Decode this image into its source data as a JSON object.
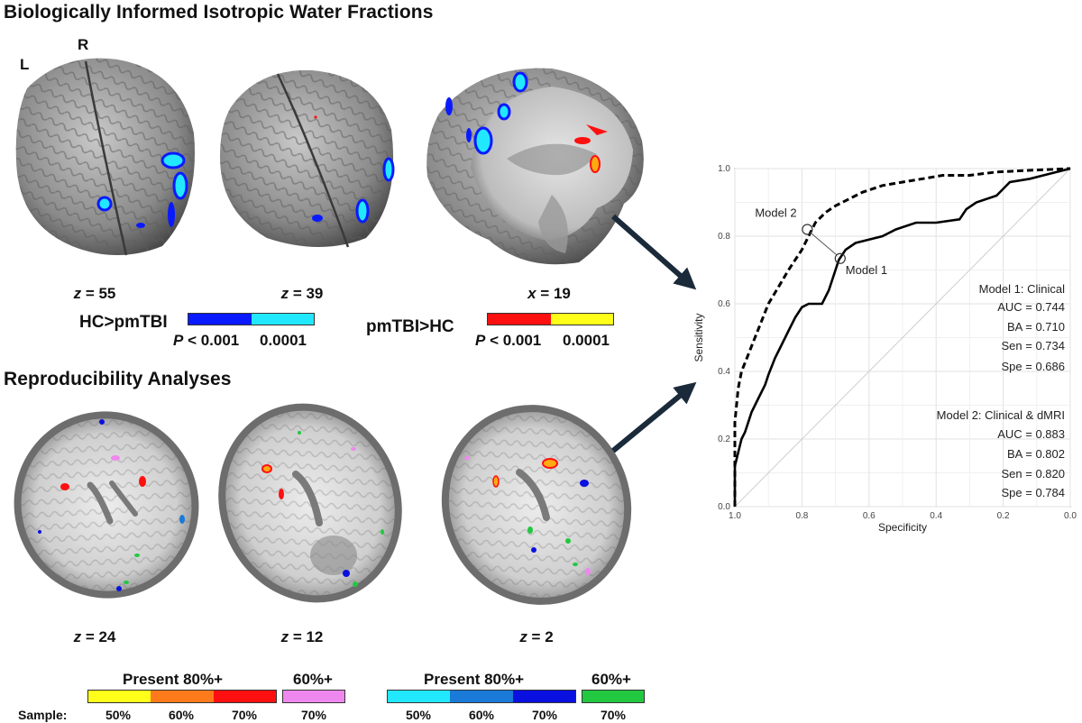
{
  "section1": {
    "title": "Biologically Informed Isotropic Water Fractions",
    "orient_left": "L",
    "orient_right": "R",
    "slices": [
      {
        "axis": "z",
        "value": "55"
      },
      {
        "axis": "z",
        "value": "39"
      },
      {
        "axis": "x",
        "value": "19"
      }
    ],
    "legend_left": {
      "label": "HC>pmTBI",
      "p_prefix": "P",
      "p_low": " < 0.001",
      "p_high": "0.0001",
      "colors": [
        "#0a1aff",
        "#22e8ff"
      ]
    },
    "legend_right": {
      "label": "pmTBI>HC",
      "p_prefix": "P",
      "p_low": " < 0.001",
      "p_high": "0.0001",
      "colors": [
        "#ff1010",
        "#ffff1a"
      ]
    }
  },
  "section2": {
    "title": "Reproducibility Analyses",
    "slices": [
      {
        "axis": "z",
        "value": "24"
      },
      {
        "axis": "z",
        "value": "12"
      },
      {
        "axis": "z",
        "value": "2"
      }
    ],
    "sample_label": "Sample:",
    "legend_warm": {
      "present_label": "Present 80%+",
      "sixty_label": "60%+",
      "segments": [
        {
          "color": "#ffff1a",
          "pct": "50%"
        },
        {
          "color": "#ff7a1a",
          "pct": "60%"
        },
        {
          "color": "#ff1010",
          "pct": "70%"
        }
      ],
      "sixty_segment": {
        "color": "#ee88ee",
        "pct": "70%"
      }
    },
    "legend_cool": {
      "present_label": "Present 80%+",
      "sixty_label": "60%+",
      "segments": [
        {
          "color": "#22e8ff",
          "pct": "50%"
        },
        {
          "color": "#1a7ad8",
          "pct": "60%"
        },
        {
          "color": "#0a10e0",
          "pct": "70%"
        }
      ],
      "sixty_segment": {
        "color": "#22c840",
        "pct": "70%"
      }
    }
  },
  "chart_data": {
    "type": "line",
    "xlabel": "Specificity",
    "ylabel": "Sensitivity",
    "xlim": [
      1.0,
      0.0
    ],
    "ylim": [
      0.0,
      1.0
    ],
    "x_ticks": [
      "1.0",
      "0.8",
      "0.6",
      "0.4",
      "0.2",
      "0.0"
    ],
    "y_ticks": [
      "0.0",
      "0.2",
      "0.4",
      "0.6",
      "0.8",
      "1.0"
    ],
    "grid": true,
    "series": [
      {
        "name": "Model 1",
        "style": "solid",
        "points": [
          [
            1.0,
            0.0
          ],
          [
            1.0,
            0.12
          ],
          [
            0.99,
            0.16
          ],
          [
            0.98,
            0.2
          ],
          [
            0.97,
            0.22
          ],
          [
            0.96,
            0.25
          ],
          [
            0.95,
            0.28
          ],
          [
            0.93,
            0.32
          ],
          [
            0.91,
            0.36
          ],
          [
            0.9,
            0.39
          ],
          [
            0.88,
            0.44
          ],
          [
            0.86,
            0.48
          ],
          [
            0.84,
            0.52
          ],
          [
            0.82,
            0.56
          ],
          [
            0.8,
            0.59
          ],
          [
            0.78,
            0.6
          ],
          [
            0.74,
            0.6
          ],
          [
            0.72,
            0.64
          ],
          [
            0.7,
            0.7
          ],
          [
            0.69,
            0.73
          ],
          [
            0.67,
            0.76
          ],
          [
            0.64,
            0.78
          ],
          [
            0.6,
            0.79
          ],
          [
            0.56,
            0.8
          ],
          [
            0.52,
            0.82
          ],
          [
            0.46,
            0.84
          ],
          [
            0.4,
            0.84
          ],
          [
            0.33,
            0.85
          ],
          [
            0.31,
            0.88
          ],
          [
            0.28,
            0.9
          ],
          [
            0.22,
            0.92
          ],
          [
            0.2,
            0.94
          ],
          [
            0.18,
            0.96
          ],
          [
            0.12,
            0.97
          ],
          [
            0.08,
            0.98
          ],
          [
            0.04,
            0.99
          ],
          [
            0.0,
            1.0
          ]
        ]
      },
      {
        "name": "Model 2",
        "style": "dashed",
        "points": [
          [
            1.0,
            0.0
          ],
          [
            1.0,
            0.25
          ],
          [
            0.99,
            0.35
          ],
          [
            0.98,
            0.4
          ],
          [
            0.96,
            0.45
          ],
          [
            0.94,
            0.5
          ],
          [
            0.92,
            0.55
          ],
          [
            0.9,
            0.6
          ],
          [
            0.87,
            0.65
          ],
          [
            0.84,
            0.7
          ],
          [
            0.8,
            0.76
          ],
          [
            0.78,
            0.8
          ],
          [
            0.76,
            0.84
          ],
          [
            0.73,
            0.87
          ],
          [
            0.7,
            0.89
          ],
          [
            0.66,
            0.91
          ],
          [
            0.62,
            0.93
          ],
          [
            0.56,
            0.95
          ],
          [
            0.5,
            0.96
          ],
          [
            0.44,
            0.97
          ],
          [
            0.38,
            0.98
          ],
          [
            0.3,
            0.98
          ],
          [
            0.22,
            0.99
          ],
          [
            0.12,
            0.995
          ],
          [
            0.0,
            1.0
          ]
        ]
      }
    ],
    "points_of_interest": [
      {
        "label": "Model 2",
        "specificity": 0.784,
        "sensitivity": 0.82
      },
      {
        "label": "Model 1",
        "specificity": 0.686,
        "sensitivity": 0.734
      }
    ],
    "annotations": {
      "model1": {
        "title": "Model 1: Clinical",
        "lines": [
          "AUC = 0.744",
          "BA = 0.710",
          "Sen = 0.734",
          "Spe = 0.686"
        ]
      },
      "model2": {
        "title": "Model 2: Clinical & dMRI",
        "lines": [
          "AUC = 0.883",
          "BA = 0.802",
          "Sen = 0.820",
          "Spe = 0.784"
        ]
      }
    }
  }
}
